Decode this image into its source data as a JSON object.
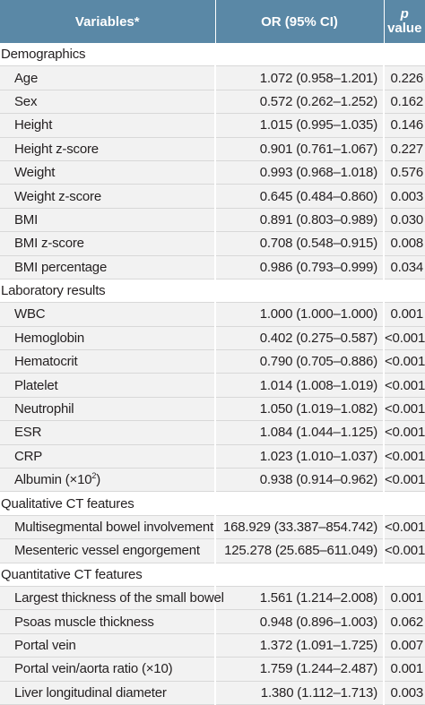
{
  "header": {
    "variables": "Variables*",
    "or": "OR (95% CI)",
    "p_italic": "p",
    "p_value": "value"
  },
  "sections": [
    {
      "title": "Demographics",
      "rows": [
        {
          "variable": "Age",
          "or": "1.072 (0.958–1.201)",
          "p": "0.226"
        },
        {
          "variable": "Sex",
          "or": "0.572 (0.262–1.252)",
          "p": "0.162"
        },
        {
          "variable": "Height",
          "or": "1.015 (0.995–1.035)",
          "p": "0.146"
        },
        {
          "variable": "Height z-score",
          "or": "0.901 (0.761–1.067)",
          "p": "0.227"
        },
        {
          "variable": "Weight",
          "or": "0.993 (0.968–1.018)",
          "p": "0.576"
        },
        {
          "variable": "Weight z-score",
          "or": "0.645 (0.484–0.860)",
          "p": "0.003"
        },
        {
          "variable": "BMI",
          "or": "0.891 (0.803–0.989)",
          "p": "0.030"
        },
        {
          "variable": "BMI z-score",
          "or": "0.708 (0.548–0.915)",
          "p": "0.008"
        },
        {
          "variable": "BMI percentage",
          "or": "0.986 (0.793–0.999)",
          "p": "0.034"
        }
      ]
    },
    {
      "title": "Laboratory results",
      "rows": [
        {
          "variable": "WBC",
          "or": "1.000 (1.000–1.000)",
          "p": "0.001"
        },
        {
          "variable": "Hemoglobin",
          "or": "0.402 (0.275–0.587)",
          "p": "<0.001"
        },
        {
          "variable": "Hematocrit",
          "or": "0.790 (0.705–0.886)",
          "p": "<0.001"
        },
        {
          "variable": "Platelet",
          "or": "1.014 (1.008–1.019)",
          "p": "<0.001"
        },
        {
          "variable": "Neutrophil",
          "or": "1.050 (1.019–1.082)",
          "p": "<0.001"
        },
        {
          "variable": "ESR",
          "or": "1.084 (1.044–1.125)",
          "p": "<0.001"
        },
        {
          "variable": "CRP",
          "or": "1.023 (1.010–1.037)",
          "p": "<0.001"
        },
        {
          "variable": "Albumin (×10",
          "sup": "2",
          "variable_suffix": ")",
          "or": "0.938 (0.914–0.962)",
          "p": "<0.001"
        }
      ]
    },
    {
      "title": "Qualitative CT features",
      "rows": [
        {
          "variable": "Multisegmental bowel involvement",
          "or": "168.929 (33.387–854.742)",
          "p": "<0.001"
        },
        {
          "variable": "Mesenteric vessel engorgement",
          "or": "125.278 (25.685–611.049)",
          "p": "<0.001"
        }
      ]
    },
    {
      "title": "Quantitative CT features",
      "rows": [
        {
          "variable": "Largest thickness of the small bowel",
          "or": "1.561 (1.214–2.008)",
          "p": "0.001"
        },
        {
          "variable": "Psoas muscle thickness",
          "or": "0.948 (0.896–1.003)",
          "p": "0.062"
        },
        {
          "variable": "Portal vein",
          "or": "1.372 (1.091–1.725)",
          "p": "0.007"
        },
        {
          "variable": "Portal vein/aorta ratio (×10)",
          "or": "1.759 (1.244–2.487)",
          "p": "0.001"
        },
        {
          "variable": "Liver longitudinal diameter",
          "or": "1.380 (1.112–1.713)",
          "p": "0.003"
        }
      ]
    }
  ]
}
